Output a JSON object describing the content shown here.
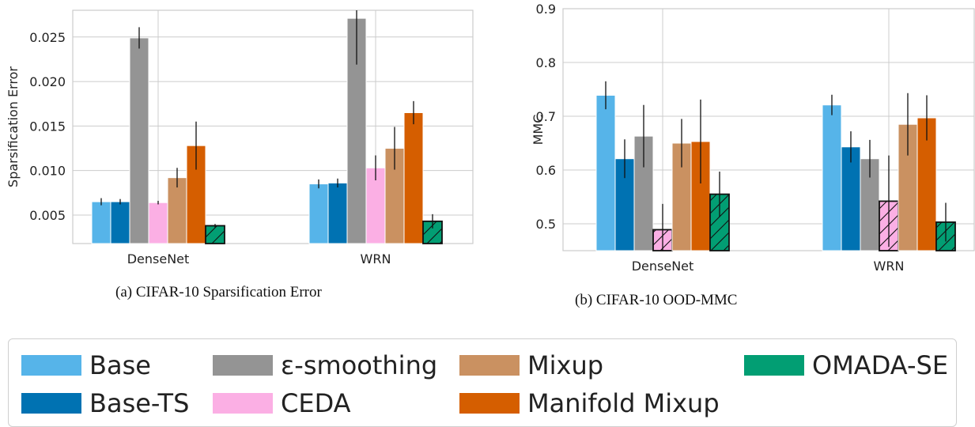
{
  "captions": {
    "a": "(a) CIFAR-10 Sparsification Error",
    "b": "(b) CIFAR-10 OOD-MMC"
  },
  "legend": [
    {
      "name": "Base",
      "color": "#56b4e9"
    },
    {
      "name": "Base-TS",
      "color": "#0072b2"
    },
    {
      "name": "ε-smoothing",
      "color": "#949494"
    },
    {
      "name": "CEDA",
      "color": "#fbafe4"
    },
    {
      "name": "Mixup",
      "color": "#ca9161"
    },
    {
      "name": "Manifold Mixup",
      "color": "#d55e00"
    },
    {
      "name": "OMADA-SE",
      "color": "#029e73"
    }
  ],
  "chart_data": [
    {
      "type": "bar",
      "title": "",
      "xlabel": "",
      "ylabel": "Sparsification Error",
      "categories": [
        "DenseNet",
        "WRN"
      ],
      "ylim": [
        0.0018,
        0.028
      ],
      "yticks": [
        0.005,
        0.01,
        0.015,
        0.02,
        0.025
      ],
      "ytick_labels": [
        "0.005",
        "0.010",
        "0.015",
        "0.020",
        "0.025"
      ],
      "grid": true,
      "series": [
        {
          "name": "Base",
          "color": "#56b4e9",
          "values": [
            0.0065,
            0.0085
          ],
          "errors": [
            0.0004,
            0.0005
          ],
          "hatch": false
        },
        {
          "name": "Base-TS",
          "color": "#0072b2",
          "values": [
            0.0065,
            0.0086
          ],
          "errors": [
            0.0003,
            0.0005
          ],
          "hatch": false
        },
        {
          "name": "ε-smoothing",
          "color": "#949494",
          "values": [
            0.0249,
            0.0271
          ],
          "errors": [
            0.0012,
            0.0052
          ],
          "hatch": false
        },
        {
          "name": "CEDA",
          "color": "#fbafe4",
          "values": [
            0.0064,
            0.0103
          ],
          "errors": [
            0.0002,
            0.0014
          ],
          "hatch": false
        },
        {
          "name": "Mixup",
          "color": "#ca9161",
          "values": [
            0.0092,
            0.0125
          ],
          "errors": [
            0.0011,
            0.0024
          ],
          "hatch": false
        },
        {
          "name": "Manifold Mixup",
          "color": "#d55e00",
          "values": [
            0.0128,
            0.0165
          ],
          "errors": [
            0.0027,
            0.0013
          ],
          "hatch": false
        },
        {
          "name": "OMADA-SE",
          "color": "#029e73",
          "values": [
            0.0038,
            0.0043
          ],
          "errors": [
            0.0002,
            0.0008
          ],
          "hatch": true
        }
      ]
    },
    {
      "type": "bar",
      "title": "",
      "xlabel": "",
      "ylabel": "MMC",
      "categories": [
        "DenseNet",
        "WRN"
      ],
      "ylim": [
        0.45,
        0.9
      ],
      "yticks": [
        0.5,
        0.6,
        0.7,
        0.8,
        0.9
      ],
      "ytick_labels": [
        "0.5",
        "0.6",
        "0.7",
        "0.8",
        "0.9"
      ],
      "grid": true,
      "series": [
        {
          "name": "Base",
          "color": "#56b4e9",
          "values": [
            0.739,
            0.721
          ],
          "errors": [
            0.026,
            0.019
          ],
          "hatch": false
        },
        {
          "name": "Base-TS",
          "color": "#0072b2",
          "values": [
            0.621,
            0.643
          ],
          "errors": [
            0.036,
            0.029
          ],
          "hatch": false
        },
        {
          "name": "ε-smoothing",
          "color": "#949494",
          "values": [
            0.663,
            0.621
          ],
          "errors": [
            0.058,
            0.035
          ],
          "hatch": false
        },
        {
          "name": "CEDA",
          "color": "#fbafe4",
          "values": [
            0.489,
            0.542
          ],
          "errors": [
            0.048,
            0.085
          ],
          "hatch": true
        },
        {
          "name": "Mixup",
          "color": "#ca9161",
          "values": [
            0.65,
            0.685
          ],
          "errors": [
            0.045,
            0.058
          ],
          "hatch": false
        },
        {
          "name": "Manifold Mixup",
          "color": "#d55e00",
          "values": [
            0.653,
            0.697
          ],
          "errors": [
            0.078,
            0.042
          ],
          "hatch": false
        },
        {
          "name": "OMADA-SE",
          "color": "#029e73",
          "values": [
            0.555,
            0.503
          ],
          "errors": [
            0.042,
            0.036
          ],
          "hatch": true
        }
      ]
    }
  ]
}
